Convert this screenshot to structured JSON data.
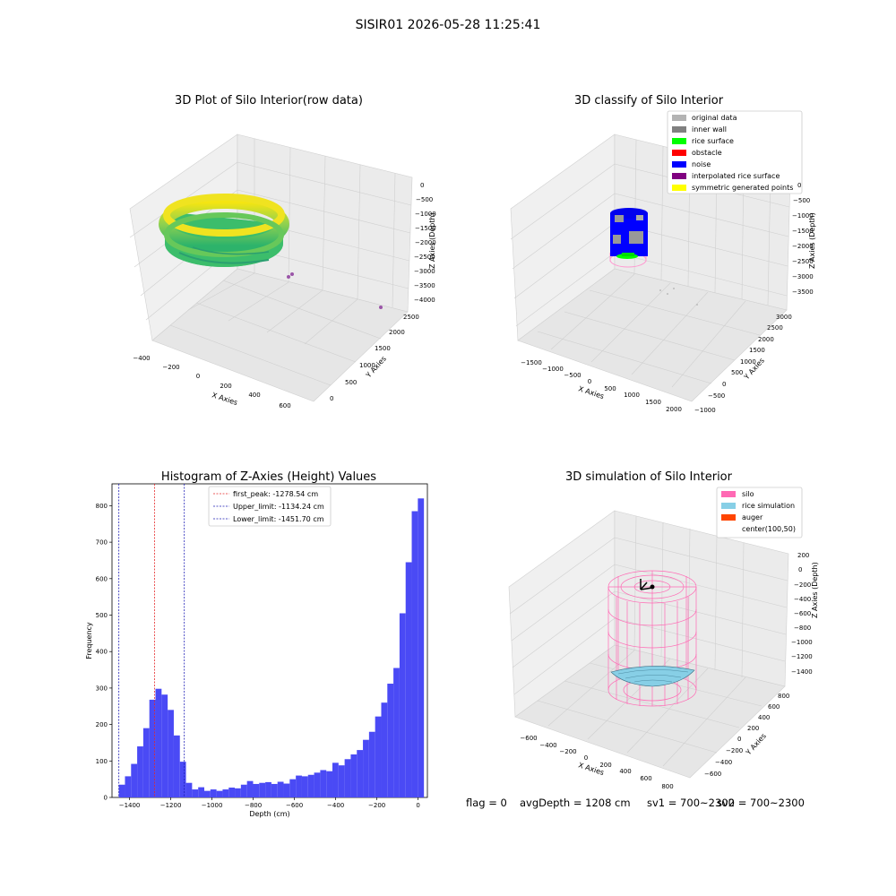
{
  "figure_title": "SISIR01 2026-05-28 11:25:41",
  "status": {
    "flag": "flag = 0",
    "avg_depth": "avgDepth = 1208 cm",
    "sv1": "sv1 = 700~2300",
    "sv2": "sv2 = 700~2300"
  },
  "colors": {
    "rice_gradient": [
      "#2db36b",
      "#8fd14f",
      "#f5e512"
    ],
    "hist_bar": "#4a4af5",
    "peak_line": "#e52727",
    "limit_line": "#1d1db5",
    "silo": "#ff69b4",
    "rice_sim": "#87cfe6",
    "auger": "#ff4500",
    "classify": {
      "original": "#b3b3b3",
      "inner_wall": "#808080",
      "rice_surface": "#00ff00",
      "obstacle": "#ff0000",
      "noise": "#0000ff",
      "interpolated": "#800080",
      "symmetric": "#ffff00"
    }
  },
  "chart_data": [
    {
      "type": "scatter",
      "projection": "3d",
      "title": "3D Plot of Silo Interior(row data)",
      "xlabel": "X Axies",
      "ylabel": "Y Axies",
      "zlabel": "Z Axies (Depth)",
      "xticks": [
        "−400",
        "−200",
        "0",
        "200",
        "400",
        "600"
      ],
      "yticks": [
        "0",
        "500",
        "1000",
        "1500",
        "2000",
        "2500"
      ],
      "zticks": [
        "0",
        "−500",
        "−1000",
        "−1500",
        "−2000",
        "−2500",
        "−3000",
        "−3500",
        "−4000"
      ],
      "description_points": "ring of points colored by depth (green to yellow) near z -1000 to -2500"
    },
    {
      "type": "scatter",
      "projection": "3d",
      "title": "3D classify of Silo Interior",
      "xlabel": "X Axies",
      "ylabel": "Y Axies",
      "zlabel": "Z Axies (Depth)",
      "xticks": [
        "−1500",
        "−1000",
        "−500",
        "0",
        "500",
        "1000",
        "1500",
        "2000"
      ],
      "yticks": [
        "−1000",
        "−500",
        "0",
        "500",
        "1000",
        "1500",
        "2000",
        "2500",
        "3000"
      ],
      "zticks": [
        "0",
        "−500",
        "−1000",
        "−1500",
        "−2000",
        "−2500",
        "−3000",
        "−3500"
      ],
      "legend": [
        {
          "label": "original data",
          "color": "#b3b3b3"
        },
        {
          "label": "inner wall",
          "color": "#808080"
        },
        {
          "label": "rice surface",
          "color": "#00ff00"
        },
        {
          "label": "obstacle",
          "color": "#ff0000"
        },
        {
          "label": "noise",
          "color": "#0000ff"
        },
        {
          "label": "interpolated rice surface",
          "color": "#800080"
        },
        {
          "label": "symmetric generated points",
          "color": "#ffff00"
        }
      ],
      "legend_position": "upper-right"
    },
    {
      "type": "bar",
      "title": "Histogram of Z-Axies (Height) Values",
      "xlabel": "Depth (cm)",
      "ylabel": "Frequency",
      "xlim": [
        -1485,
        45
      ],
      "ylim": [
        0,
        860
      ],
      "xticks": [
        -1400,
        -1200,
        -1000,
        -800,
        -600,
        -400,
        -200,
        0
      ],
      "xtick_labels": [
        "−1400",
        "−1200",
        "−1000",
        "−800",
        "−600",
        "−400",
        "−200",
        "0"
      ],
      "yticks": [
        0,
        100,
        200,
        300,
        400,
        500,
        600,
        700,
        800
      ],
      "bin_start": -1451.7,
      "bin_width": 29.6,
      "values": [
        35,
        58,
        92,
        140,
        190,
        268,
        298,
        282,
        240,
        170,
        98,
        40,
        22,
        28,
        18,
        22,
        18,
        22,
        27,
        25,
        35,
        45,
        37,
        40,
        42,
        37,
        43,
        38,
        50,
        60,
        58,
        62,
        68,
        75,
        72,
        95,
        88,
        105,
        118,
        130,
        158,
        180,
        222,
        260,
        312,
        355,
        505,
        645,
        785,
        820
      ],
      "vlines": [
        {
          "x": -1278.54,
          "label": "first_peak: -1278.54 cm",
          "color": "#e52727"
        },
        {
          "x": -1134.24,
          "label": "Upper_limit: -1134.24 cm",
          "color": "#1d1db5"
        },
        {
          "x": -1451.7,
          "label": "Lower_limit: -1451.70 cm",
          "color": "#1d1db5"
        }
      ],
      "legend_position": "upper-center"
    },
    {
      "type": "wireframe",
      "projection": "3d",
      "title": "3D simulation of Silo Interior",
      "xlabel": "X Axies",
      "ylabel": "Y Axies",
      "zlabel": "Z Axies (Depth)",
      "xticks": [
        "−600",
        "−400",
        "−200",
        "0",
        "200",
        "400",
        "600",
        "800"
      ],
      "yticks": [
        "−600",
        "−400",
        "−200",
        "0",
        "200",
        "400",
        "600",
        "800"
      ],
      "zticks": [
        "200",
        "0",
        "−200",
        "−400",
        "−600",
        "−800",
        "−1000",
        "−1200",
        "−1400"
      ],
      "legend": [
        {
          "label": "silo",
          "color": "#ff69b4"
        },
        {
          "label": "rice simulation",
          "color": "#87cfe6"
        },
        {
          "label": "auger",
          "color": "#ff4500"
        },
        {
          "label": "center(100,50)",
          "color": ""
        }
      ],
      "legend_position": "upper-right"
    }
  ]
}
